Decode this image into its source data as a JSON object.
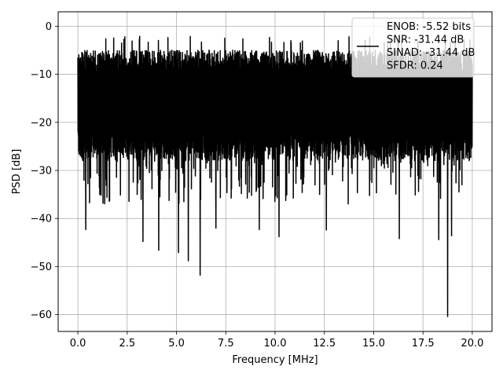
{
  "chart_data": {
    "type": "line",
    "title": "",
    "xlabel": "Frequency [MHz]",
    "ylabel": "PSD [dB]",
    "xlim": [
      -1.0,
      21.0
    ],
    "ylim": [
      -63.5,
      3.0
    ],
    "x_ticks": [
      0.0,
      2.5,
      5.0,
      7.5,
      10.0,
      12.5,
      15.0,
      17.5,
      20.0
    ],
    "x_tick_labels": [
      "0.0",
      "2.5",
      "5.0",
      "7.5",
      "10.0",
      "12.5",
      "15.0",
      "17.5",
      "20.0"
    ],
    "y_ticks": [
      0,
      -10,
      -20,
      -30,
      -40,
      -50,
      -60
    ],
    "y_tick_labels": [
      "0",
      "−10",
      "−20",
      "−30",
      "−40",
      "−50",
      "−60"
    ],
    "grid": true,
    "legend_position": "top-right",
    "series": [
      {
        "color": "#000000",
        "x_range": [
          0.0,
          20.0
        ],
        "typical_band": [
          -28,
          -5
        ],
        "approx_max": -2.0,
        "approx_min": -60.5,
        "notable_dips": [
          {
            "x": 0.4,
            "y": -42.3
          },
          {
            "x": 3.3,
            "y": -44.8
          },
          {
            "x": 4.1,
            "y": -46.6
          },
          {
            "x": 5.1,
            "y": -47.1
          },
          {
            "x": 5.6,
            "y": -48.8
          },
          {
            "x": 6.2,
            "y": -51.8
          },
          {
            "x": 7.0,
            "y": -42.0
          },
          {
            "x": 9.2,
            "y": -42.3
          },
          {
            "x": 10.2,
            "y": -43.8
          },
          {
            "x": 12.6,
            "y": -42.4
          },
          {
            "x": 16.3,
            "y": -44.2
          },
          {
            "x": 18.3,
            "y": -44.4
          },
          {
            "x": 18.75,
            "y": -60.4
          },
          {
            "x": 18.95,
            "y": -43.6
          }
        ]
      }
    ],
    "legend_entries": [
      "ENOB: -5.52 bits",
      "SNR: -31.44 dB",
      "SINAD: -31.44 dB",
      "SFDR: 0.24"
    ]
  }
}
